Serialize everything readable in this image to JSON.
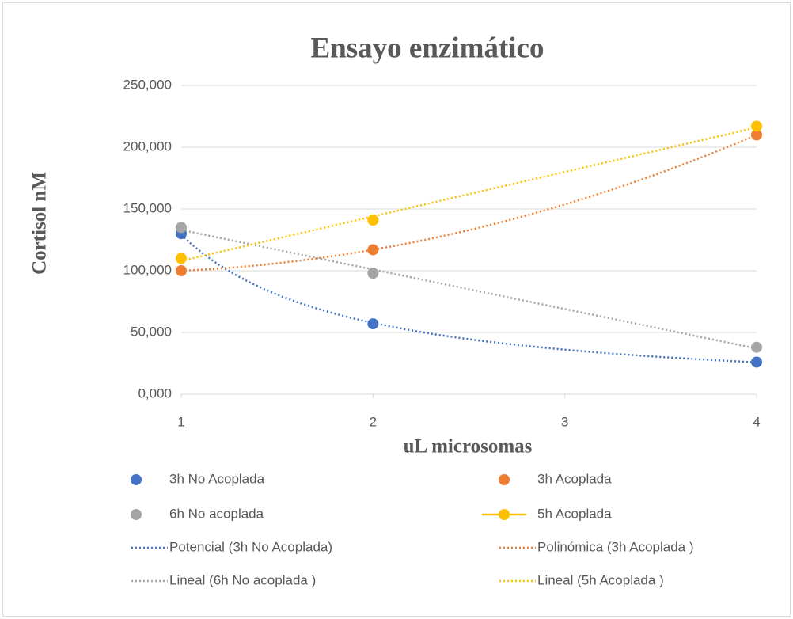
{
  "chart_data": {
    "type": "scatter",
    "title": "Ensayo enzimático",
    "x_label": "uL microsomas",
    "y_label": "Cortisol nM",
    "x": [
      1,
      2,
      4
    ],
    "xlim": [
      1,
      4
    ],
    "xticks": [
      1,
      2,
      3,
      4
    ],
    "ylim": [
      0,
      250
    ],
    "yticks": [
      {
        "value": 0,
        "label": "0,000"
      },
      {
        "value": 50,
        "label": "50,000"
      },
      {
        "value": 100,
        "label": "100,000"
      },
      {
        "value": 150,
        "label": "150,000"
      },
      {
        "value": 200,
        "label": "200,000"
      },
      {
        "value": 250,
        "label": "250,000"
      }
    ],
    "grid": true,
    "series": [
      {
        "name": "3h No Acoplada",
        "color": "#4472c4",
        "values": [
          130,
          57,
          26
        ],
        "trendline": {
          "name": "Potencial (3h No Acoplada)",
          "type": "power"
        }
      },
      {
        "name": "3h Acoplada",
        "color": "#ed7d31",
        "values": [
          100,
          117,
          210
        ],
        "trendline": {
          "name": "Polinómica (3h Acoplada )",
          "type": "polynomial"
        }
      },
      {
        "name": "6h No acoplada",
        "color": "#a5a5a5",
        "values": [
          135,
          98,
          38
        ],
        "trendline": {
          "name": "Lineal (6h No acoplada )",
          "type": "linear"
        }
      },
      {
        "name": "5h Acoplada",
        "color": "#ffc000",
        "values": [
          110,
          141,
          217
        ],
        "legend_line": true,
        "trendline": {
          "name": "Lineal (5h Acoplada )",
          "type": "linear"
        }
      }
    ]
  }
}
